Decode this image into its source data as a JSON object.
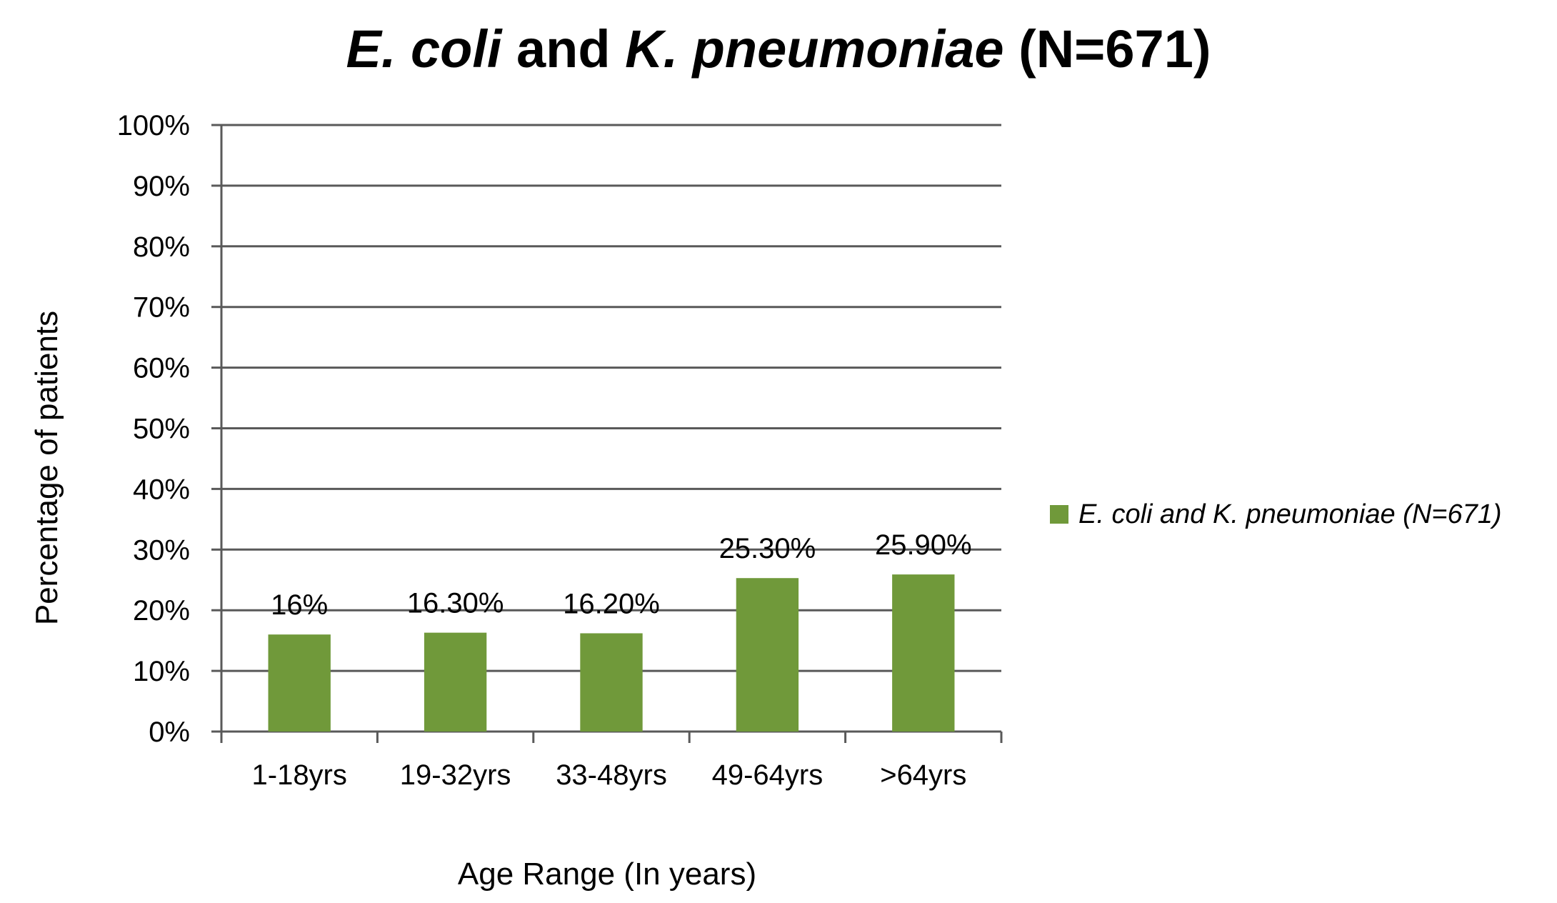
{
  "chart_data": {
    "type": "bar",
    "title": {
      "part1": "E. coli",
      "part2": " and ",
      "part3": "K. pneumoniae",
      "part4": " (N=671)"
    },
    "xlabel": "Age Range (In years)",
    "ylabel": "Percentage of patients",
    "categories": [
      "1-18yrs",
      "19-32yrs",
      "33-48yrs",
      "49-64yrs",
      ">64yrs"
    ],
    "series": [
      {
        "name": "E. coli and K. pneumoniae (N=671)",
        "values": [
          16,
          16.3,
          16.2,
          25.3,
          25.9
        ],
        "labels": [
          "16%",
          "16.30%",
          "16.20%",
          "25.30%",
          "25.90%"
        ],
        "color": "#70993a"
      }
    ],
    "yticks": [
      "0%",
      "10%",
      "20%",
      "30%",
      "40%",
      "50%",
      "60%",
      "70%",
      "80%",
      "90%",
      "100%"
    ],
    "ylim": [
      0,
      100
    ],
    "grid": true,
    "legend_position": "right",
    "colors": {
      "grid": "#595959",
      "axis": "#595959",
      "bar": "#70993a"
    }
  }
}
